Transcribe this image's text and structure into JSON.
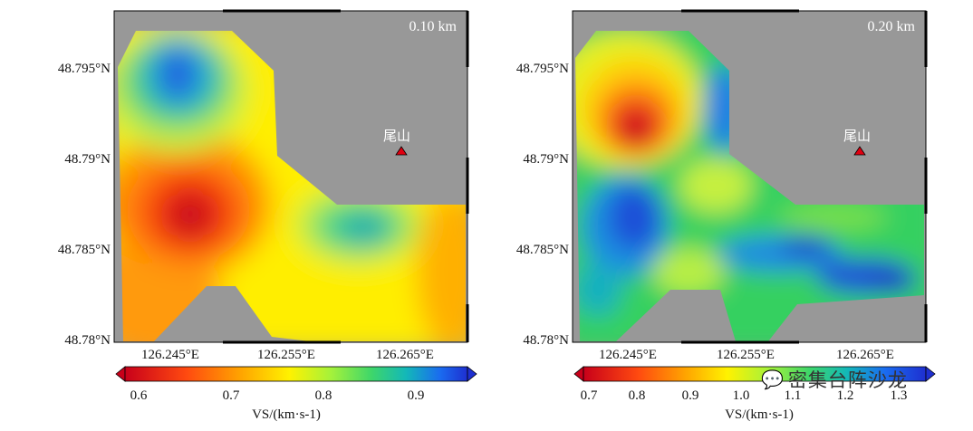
{
  "chart_data": [
    {
      "type": "heatmap",
      "panel_label": "0.10 km",
      "station_label": "尾山",
      "xticks": [
        "126.245°E",
        "126.255°E",
        "126.265°E"
      ],
      "yticks": [
        "48.795°N",
        "48.79°N",
        "48.785°N",
        "48.78°N"
      ],
      "xlim": [
        126.24,
        126.269
      ],
      "ylim": [
        48.78,
        48.798
      ],
      "station": {
        "lon": 126.2635,
        "lat": 48.7903
      },
      "colorbar": {
        "ticks": [
          "0.6",
          "0.7",
          "0.8",
          "0.9"
        ],
        "range": [
          0.57,
          0.96
        ],
        "label": "VS/(km·s-1)"
      },
      "anomalies": [
        {
          "lon": 126.2444,
          "lat": 48.7945,
          "value": 0.92,
          "note": "high-velocity north"
        },
        {
          "lon": 126.2458,
          "lat": 48.7868,
          "value": 0.6,
          "note": "low-velocity center-west"
        },
        {
          "lon": 126.261,
          "lat": 48.7859,
          "value": 0.84,
          "note": "moderate east"
        }
      ]
    },
    {
      "type": "heatmap",
      "panel_label": "0.20 km",
      "station_label": "尾山",
      "xticks": [
        "126.245°E",
        "126.255°E",
        "126.265°E"
      ],
      "yticks": [
        "48.795°N",
        "48.79°N",
        "48.785°N",
        "48.78°N"
      ],
      "xlim": [
        126.24,
        126.269
      ],
      "ylim": [
        48.78,
        48.798
      ],
      "station": {
        "lon": 126.2635,
        "lat": 48.7903
      },
      "colorbar": {
        "ticks": [
          "0.7",
          "0.8",
          "0.9",
          "1.0",
          "1.1",
          "1.2",
          "1.3"
        ],
        "range": [
          0.67,
          1.36
        ],
        "label": "VS/(km·s-1)"
      },
      "anomalies": [
        {
          "lon": 126.2447,
          "lat": 48.7915,
          "value": 0.72,
          "note": "low-velocity north-west"
        },
        {
          "lon": 126.2445,
          "lat": 48.7862,
          "value": 1.25,
          "note": "high-velocity west"
        },
        {
          "lon": 126.256,
          "lat": 48.7845,
          "value": 1.3,
          "note": "high-velocity south-east"
        }
      ]
    }
  ],
  "watermark": {
    "icon": "wechat-icon",
    "text": "密集台阵沙龙"
  }
}
